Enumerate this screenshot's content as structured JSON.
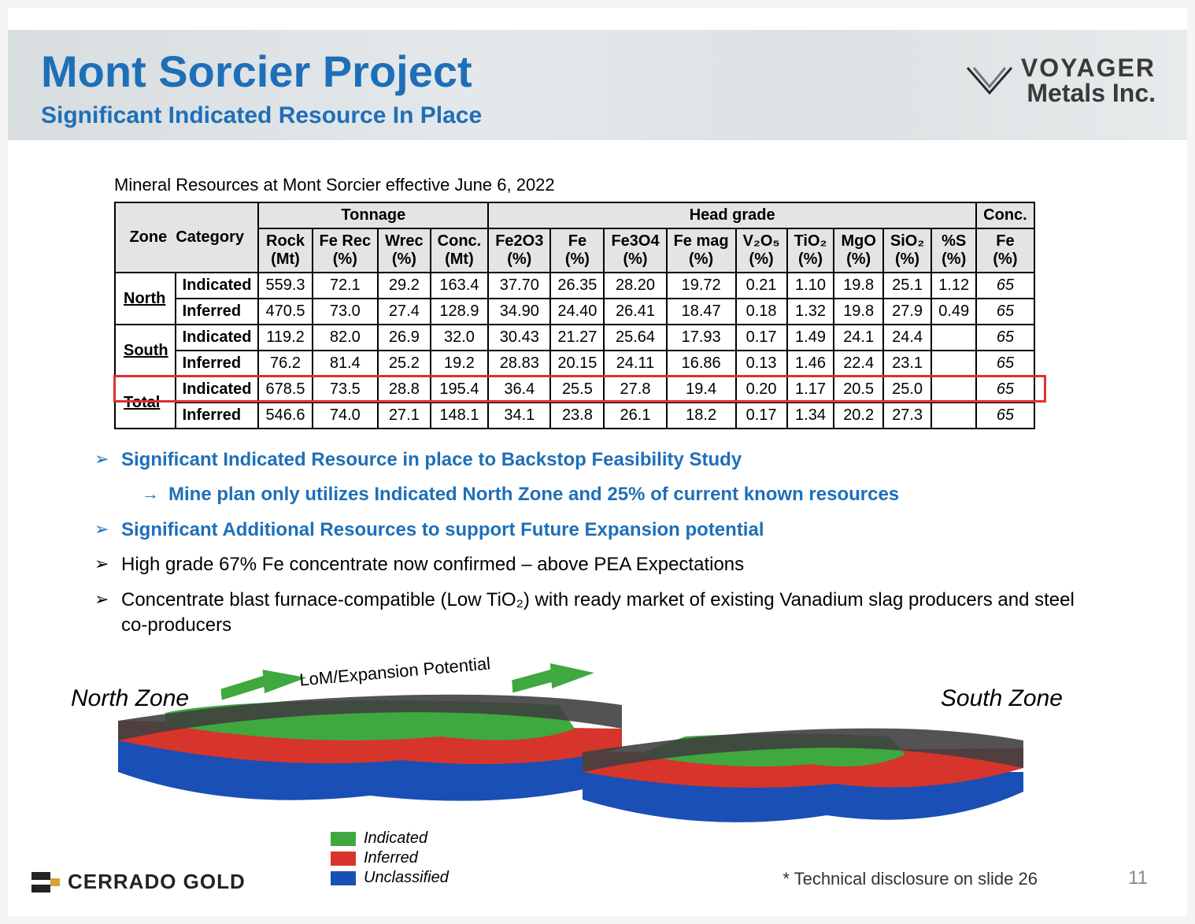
{
  "header": {
    "title": "Mont Sorcier Project",
    "subtitle": "Significant Indicated Resource In Place",
    "logo_top": "VOYAGER",
    "logo_bot": "Metals Inc."
  },
  "table": {
    "caption": "Mineral Resources at Mont Sorcier effective June 6, 2022",
    "group_headers": [
      "Tonnage",
      "Head grade",
      "Conc."
    ],
    "sub_headers_line1": [
      "Zone",
      "Category",
      "Rock",
      "Fe Rec",
      "Wrec",
      "Conc.",
      "Fe2O3",
      "Fe",
      "Fe3O4",
      "Fe mag",
      "V₂O₅",
      "TiO₂",
      "MgO",
      "SiO₂",
      "%S",
      "Fe"
    ],
    "sub_headers_line2": [
      "",
      "",
      "(Mt)",
      "(%)",
      "(%)",
      "(Mt)",
      "(%)",
      "(%)",
      "(%)",
      "(%)",
      "(%)",
      "(%)",
      "(%)",
      "(%)",
      "(%)",
      "(%)"
    ],
    "rows": [
      {
        "zone": "North",
        "cat": "Indicated",
        "cells": [
          "559.3",
          "72.1",
          "29.2",
          "163.4",
          "37.70",
          "26.35",
          "28.20",
          "19.72",
          "0.21",
          "1.10",
          "19.8",
          "25.1",
          "1.12",
          "65"
        ]
      },
      {
        "zone": "",
        "cat": "Inferred",
        "cells": [
          "470.5",
          "73.0",
          "27.4",
          "128.9",
          "34.90",
          "24.40",
          "26.41",
          "18.47",
          "0.18",
          "1.32",
          "19.8",
          "27.9",
          "0.49",
          "65"
        ]
      },
      {
        "zone": "South",
        "cat": "Indicated",
        "cells": [
          "119.2",
          "82.0",
          "26.9",
          "32.0",
          "30.43",
          "21.27",
          "25.64",
          "17.93",
          "0.17",
          "1.49",
          "24.1",
          "24.4",
          "",
          "65"
        ]
      },
      {
        "zone": "",
        "cat": "Inferred",
        "cells": [
          "76.2",
          "81.4",
          "25.2",
          "19.2",
          "28.83",
          "20.15",
          "24.11",
          "16.86",
          "0.13",
          "1.46",
          "22.4",
          "23.1",
          "",
          "65"
        ]
      },
      {
        "zone": "Total",
        "cat": "Indicated",
        "cells": [
          "678.5",
          "73.5",
          "28.8",
          "195.4",
          "36.4",
          "25.5",
          "27.8",
          "19.4",
          "0.20",
          "1.17",
          "20.5",
          "25.0",
          "",
          "65"
        ],
        "highlight": true
      },
      {
        "zone": "",
        "cat": "Inferred",
        "cells": [
          "546.6",
          "74.0",
          "27.1",
          "148.1",
          "34.1",
          "23.8",
          "26.1",
          "18.2",
          "0.17",
          "1.34",
          "20.2",
          "27.3",
          "",
          "65"
        ]
      }
    ]
  },
  "bullets": [
    {
      "style": "blue",
      "level": 0,
      "text": "Significant Indicated Resource in place to Backstop Feasibility Study"
    },
    {
      "style": "blue",
      "level": 1,
      "marker": "→",
      "text": "Mine plan only utilizes Indicated North Zone and 25% of current known resources"
    },
    {
      "style": "blue",
      "level": 0,
      "text": "Significant  Additional Resources to support Future Expansion potential"
    },
    {
      "style": "black",
      "level": 0,
      "text": "High grade 67% Fe concentrate now confirmed – above PEA Expectations"
    },
    {
      "style": "black",
      "level": 0,
      "text": "Concentrate blast furnace-compatible (Low TiO₂) with ready market of existing Vanadium slag producers and steel co-producers"
    }
  ],
  "diagram": {
    "north_label": "North Zone",
    "south_label": "South Zone",
    "lom_label": "LoM/Expansion Potential",
    "legend": [
      {
        "color": "#3fa83f",
        "label": "Indicated"
      },
      {
        "color": "#d7342b",
        "label": "Inferred"
      },
      {
        "color": "#1a4fb5",
        "label": "Unclassified"
      }
    ],
    "colors": {
      "indicated": "#3fa83f",
      "inferred": "#d7342b",
      "unclassified": "#1a4fb5",
      "overburden": "#404040",
      "arrow": "#3fa83f"
    }
  },
  "footer": {
    "brand": "CERRADO GOLD",
    "note": "* Technical disclosure on slide 26",
    "page": "11"
  },
  "highlight_box": {
    "color": "#e03030"
  }
}
